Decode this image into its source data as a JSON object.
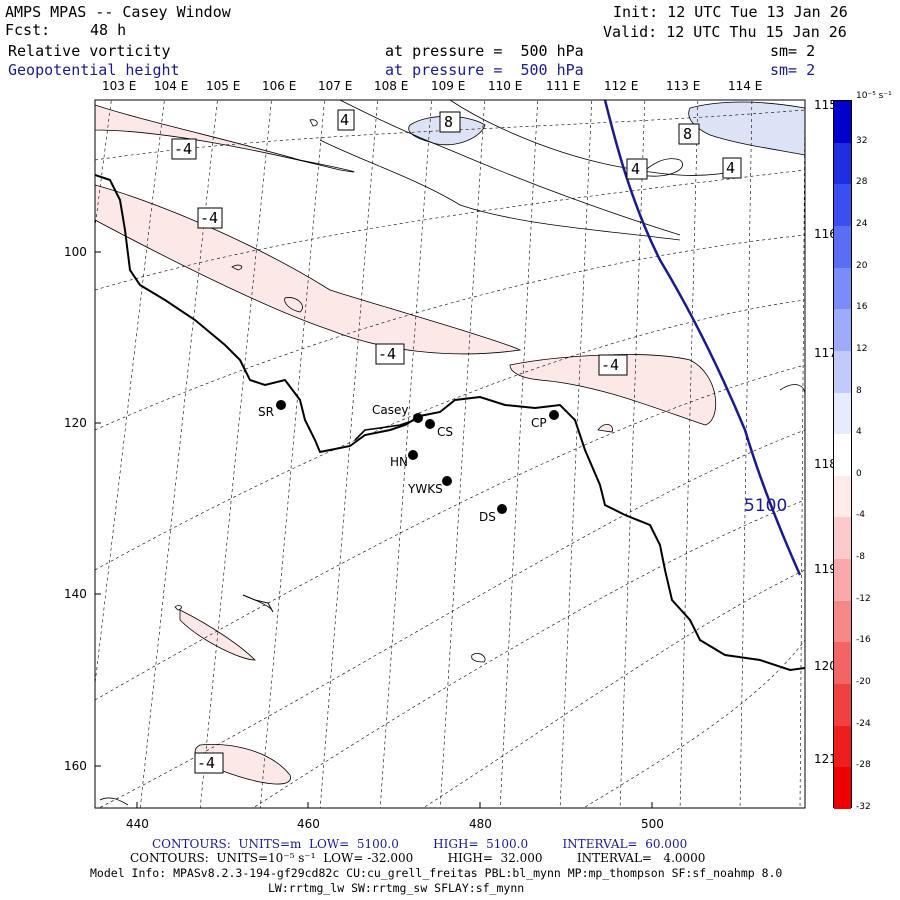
{
  "header": {
    "title": "AMPS MPAS -- Casey Window",
    "forecast_label": "Fcst:",
    "forecast_value": "48 h",
    "field1": "Relative vorticity",
    "field2": "Geopotential height",
    "pressure1": "at pressure =  500 hPa",
    "pressure2": "at pressure =  500 hPa",
    "sm1": "sm= 2",
    "sm2": "sm= 2",
    "init": "Init: 12 UTC Tue 13 Jan 26",
    "valid": "Valid: 12 UTC Thu 15 Jan 26"
  },
  "map": {
    "lon_labels_top": [
      "103 E",
      "104 E",
      "105 E",
      "106 E",
      "107 E",
      "108 E",
      "109 E",
      "110 E",
      "111 E",
      "112 E",
      "113 E",
      "114 E"
    ],
    "lon_labels_right": [
      "115 E",
      "116 E",
      "117 E",
      "118 E",
      "119 E",
      "120 E",
      "121 E"
    ],
    "x_ticks": [
      "440",
      "460",
      "480",
      "500"
    ],
    "y_ticks": [
      "100",
      "120",
      "140",
      "160"
    ],
    "stations": [
      {
        "name": "SR"
      },
      {
        "name": "Casey"
      },
      {
        "name": "CS"
      },
      {
        "name": "HN"
      },
      {
        "name": "YWKS"
      },
      {
        "name": "CP"
      },
      {
        "name": "DS"
      }
    ],
    "contour_labels": [
      "4",
      "8",
      "-4",
      "-4",
      "8",
      "4",
      "4",
      "-4",
      "-4",
      "-4"
    ],
    "height_label": "5100",
    "colors": {
      "height_contour": "#1a1a8c",
      "neg_fill": "#fde8e8",
      "pos_fill": "#dde3f7"
    }
  },
  "colorbar": {
    "unit": "10⁻⁵ s⁻¹",
    "labels": [
      "32",
      "28",
      "24",
      "20",
      "16",
      "12",
      "8",
      "4",
      "0",
      "-4",
      "-8",
      "-12",
      "-16",
      "-20",
      "-24",
      "-28",
      "-32"
    ],
    "colors": [
      "#0000cc",
      "#1f2fe0",
      "#3a4ff0",
      "#5a6ef5",
      "#7a8cf8",
      "#9cabfa",
      "#c0cbfc",
      "#e6ebfe",
      "#ffffff",
      "#ffe9e9",
      "#fccaca",
      "#f9a9a9",
      "#f68787",
      "#f36464",
      "#f04141",
      "#ed1e1e",
      "#ee0000"
    ]
  },
  "footer": {
    "line1": "CONTOURS:  UNITS=m  LOW=  5100.0         HIGH=  5100.0         INTERVAL=  60.000",
    "line2": "CONTOURS:  UNITS=10⁻⁵ s⁻¹  LOW= -32.000         HIGH=  32.000         INTERVAL=   4.0000",
    "line3": "Model Info: MPASv8.2.3-194-gf29cd82c CU:cu_grell_freitas PBL:bl_mynn MP:mp_thompson SF:sf_noahmp 8.0",
    "line4": "LW:rrtmg_lw SW:rrtmg_sw SFLAY:sf_mynn"
  }
}
